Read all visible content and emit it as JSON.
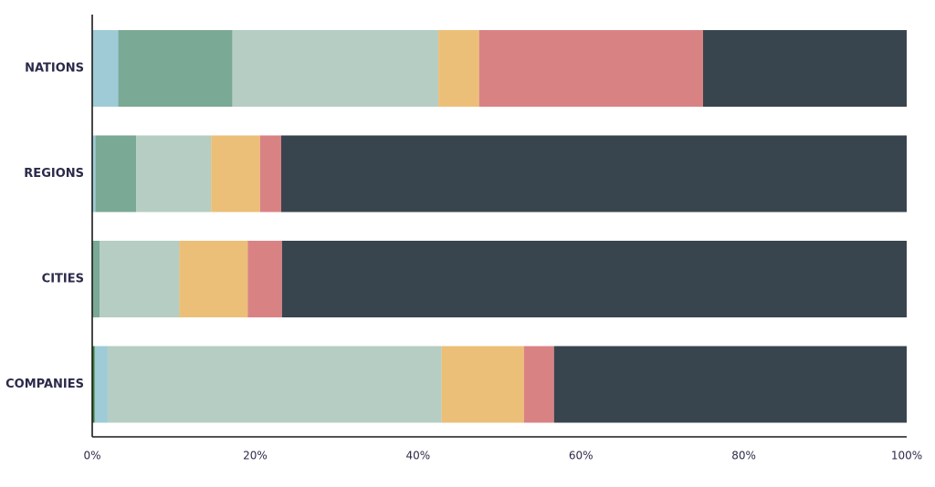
{
  "chart_data": {
    "type": "bar",
    "orientation": "horizontal",
    "stacked": true,
    "normalized": true,
    "title": "",
    "xlabel": "",
    "ylabel": "",
    "xlim": [
      0,
      100
    ],
    "x_ticks": [
      "0%",
      "20%",
      "40%",
      "60%",
      "80%",
      "100%"
    ],
    "x_tick_values": [
      0,
      20,
      40,
      60,
      80,
      100
    ],
    "grid": false,
    "legend": "none",
    "categories": [
      "NATIONS",
      "REGIONS",
      "CITIES",
      "COMPANIES"
    ],
    "series": [
      {
        "color": "#3a7d3a",
        "values": [
          0.0,
          0.0,
          0.0,
          0.3
        ]
      },
      {
        "color": "#9ecbd6",
        "values": [
          3.2,
          0.4,
          0.0,
          1.6
        ]
      },
      {
        "color": "#7aa995",
        "values": [
          14.0,
          5.0,
          0.9,
          0.0
        ]
      },
      {
        "color": "#b5cdc2",
        "values": [
          25.3,
          9.2,
          9.8,
          41.0
        ]
      },
      {
        "color": "#ecbf78",
        "values": [
          5.0,
          6.0,
          8.4,
          10.1
        ]
      },
      {
        "color": "#d98284",
        "values": [
          27.5,
          2.6,
          4.2,
          3.7
        ]
      },
      {
        "color": "#38454e",
        "values": [
          25.0,
          76.8,
          76.7,
          43.3
        ]
      }
    ]
  }
}
